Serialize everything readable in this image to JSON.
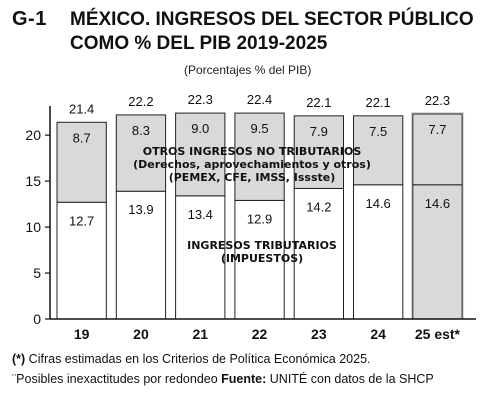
{
  "header": {
    "figure_id": "G-1",
    "title_line1": "MÉXICO. INGRESOS DEL SECTOR PÚBLICO",
    "title_line2": "COMO % DEL PIB 2019-2025",
    "subtitle": "(Porcentajes % del PIB)"
  },
  "chart_data": {
    "type": "bar",
    "stacked": true,
    "categories": [
      "19",
      "20",
      "21",
      "22",
      "23",
      "24",
      "25 est*"
    ],
    "series": [
      {
        "name": "INGRESOS TRIBUTARIOS (IMPUESTOS)",
        "values": [
          12.7,
          13.9,
          13.4,
          12.9,
          14.2,
          14.6,
          14.6
        ]
      },
      {
        "name": "OTROS INGRESOS NO TRIBUTARIOS (Derechos, aprovechamientos y otros) (PEMEX, CFE, IMSS, Issste)",
        "values": [
          8.7,
          8.3,
          9.0,
          9.5,
          7.9,
          7.5,
          7.7
        ]
      }
    ],
    "totals": [
      21.4,
      22.2,
      22.3,
      22.4,
      22.1,
      22.1,
      22.3
    ],
    "ylim": [
      0,
      22.3
    ],
    "yticks": [
      0,
      5,
      10,
      15,
      20
    ],
    "estimated_category": "25 est*",
    "colors": {
      "tax": "#ffffff",
      "nontax": "#d9d9d9",
      "estimate_bg": "#d9d9d9",
      "outline": "#222222"
    },
    "annotations": {
      "nontax_line1": "OTROS INGRESOS NO TRIBUTARIOS",
      "nontax_line2": "(Derechos, aprovechamientos y otros)",
      "nontax_line3": "(PEMEX, CFE, IMSS, Issste)",
      "tax_line1": "INGRESOS TRIBUTARIOS",
      "tax_line2": "(IMPUESTOS)"
    }
  },
  "footer": {
    "note_marker": "(*)",
    "note_text": " Cifras estimadas en los Criterios de Política Económica 2025.",
    "rounding_note": "¨Posibles inexactitudes por redondeo ",
    "source_label": "Fuente:",
    "source_text": " UNITÉ con datos de la SHCP"
  }
}
